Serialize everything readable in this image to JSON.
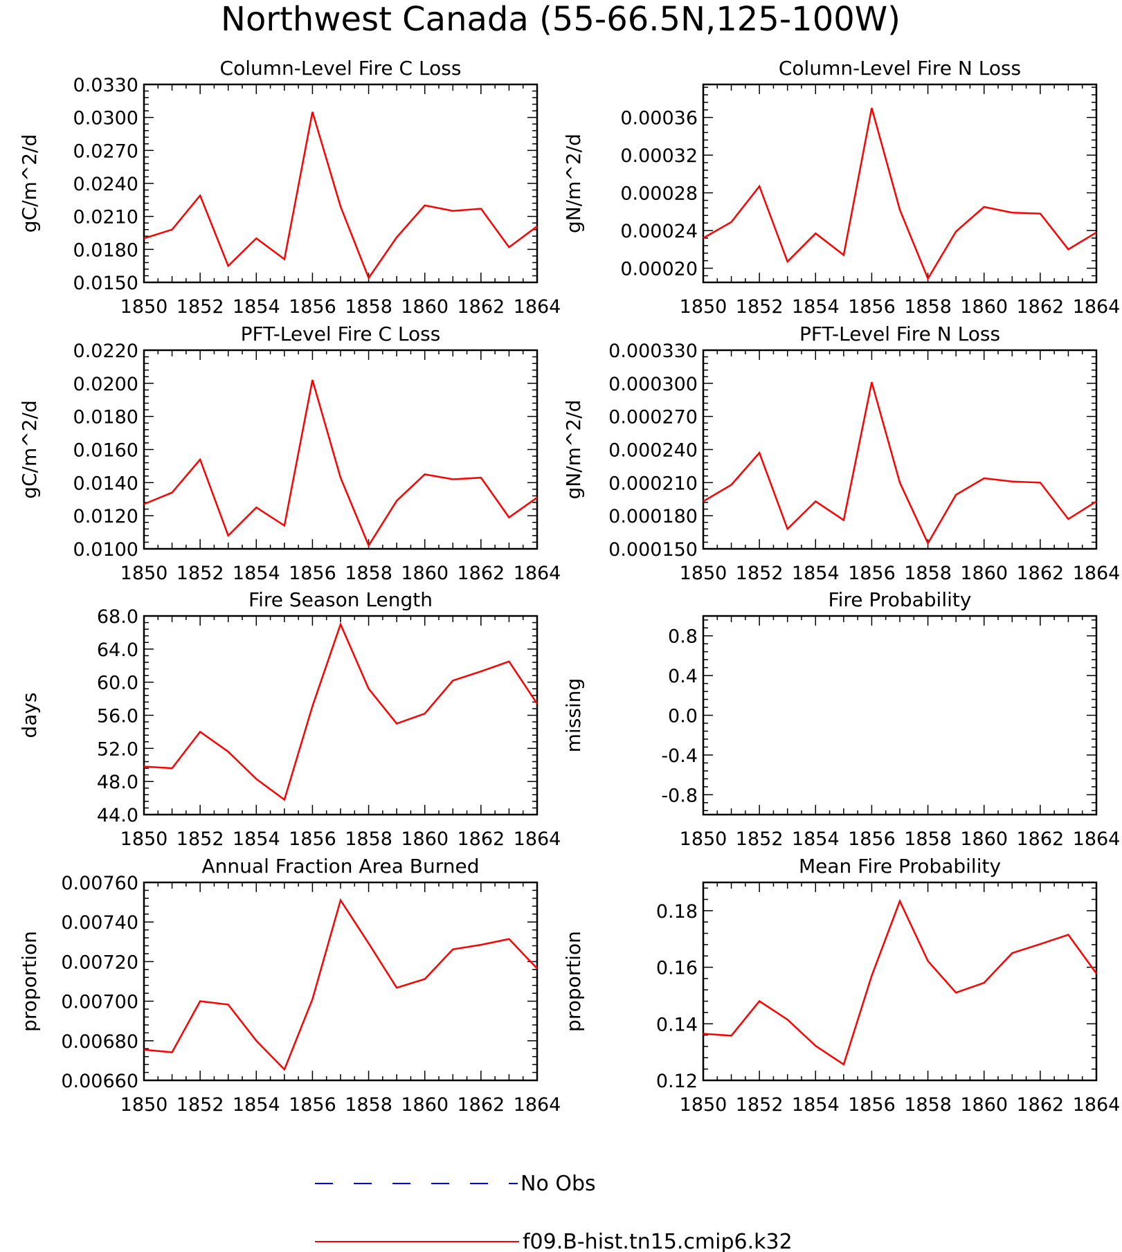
{
  "figure": {
    "title": "Northwest Canada (55-66.5N,125-100W)",
    "series_colors": {
      "model": "#ff0000",
      "obs": "#0000ff"
    }
  },
  "legend": {
    "items": [
      {
        "label": "No Obs",
        "style": "dashed",
        "color": "#0000ff"
      },
      {
        "label": "f09.B-hist.tn15.cmip6.k32",
        "style": "solid",
        "color": "#ff0000"
      }
    ]
  },
  "chart_data": [
    {
      "type": "line",
      "title": "Column-Level Fire C Loss",
      "ylabel": "gC/m^2/d",
      "xlim": [
        1850,
        1864
      ],
      "xticks": [
        "1850",
        "1852",
        "1854",
        "1856",
        "1858",
        "1860",
        "1862",
        "1864"
      ],
      "ylim": [
        0.015,
        0.033
      ],
      "yticks": [
        "0.0150",
        "0.0180",
        "0.0210",
        "0.0240",
        "0.0270",
        "0.0300",
        "0.0330"
      ],
      "x": [
        1850,
        1851,
        1852,
        1853,
        1854,
        1855,
        1856,
        1857,
        1858,
        1859,
        1860,
        1861,
        1862,
        1863,
        1864
      ],
      "series": [
        {
          "values": [
            0.019,
            0.0198,
            0.0229,
            0.0165,
            0.019,
            0.0171,
            0.0305,
            0.0219,
            0.0154,
            0.0191,
            0.022,
            0.0215,
            0.0217,
            0.0182,
            0.0201
          ]
        }
      ]
    },
    {
      "type": "line",
      "title": "Column-Level Fire N Loss",
      "ylabel": "gN/m^2/d",
      "xlim": [
        1850,
        1864
      ],
      "xticks": [
        "1850",
        "1852",
        "1854",
        "1856",
        "1858",
        "1860",
        "1862",
        "1864"
      ],
      "ylim": [
        0.000185,
        0.000395
      ],
      "yticks": [
        "0.00020",
        "0.00024",
        "0.00028",
        "0.00032",
        "0.00036"
      ],
      "x": [
        1850,
        1851,
        1852,
        1853,
        1854,
        1855,
        1856,
        1857,
        1858,
        1859,
        1860,
        1861,
        1862,
        1863,
        1864
      ],
      "series": [
        {
          "values": [
            0.000232,
            0.000249,
            0.000287,
            0.000207,
            0.000237,
            0.000214,
            0.00037,
            0.000262,
            0.000189,
            0.000239,
            0.000265,
            0.000259,
            0.000258,
            0.00022,
            0.000238
          ]
        }
      ]
    },
    {
      "type": "line",
      "title": "PFT-Level Fire C Loss",
      "ylabel": "gC/m^2/d",
      "xlim": [
        1850,
        1864
      ],
      "xticks": [
        "1850",
        "1852",
        "1854",
        "1856",
        "1858",
        "1860",
        "1862",
        "1864"
      ],
      "ylim": [
        0.01,
        0.022
      ],
      "yticks": [
        "0.0100",
        "0.0120",
        "0.0140",
        "0.0160",
        "0.0180",
        "0.0200",
        "0.0220"
      ],
      "x": [
        1850,
        1851,
        1852,
        1853,
        1854,
        1855,
        1856,
        1857,
        1858,
        1859,
        1860,
        1861,
        1862,
        1863,
        1864
      ],
      "series": [
        {
          "values": [
            0.0127,
            0.0134,
            0.0154,
            0.0108,
            0.0125,
            0.0114,
            0.0202,
            0.0143,
            0.0102,
            0.0129,
            0.0145,
            0.0142,
            0.0143,
            0.0119,
            0.0131
          ]
        }
      ]
    },
    {
      "type": "line",
      "title": "PFT-Level Fire N Loss",
      "ylabel": "gN/m^2/d",
      "xlim": [
        1850,
        1864
      ],
      "xticks": [
        "1850",
        "1852",
        "1854",
        "1856",
        "1858",
        "1860",
        "1862",
        "1864"
      ],
      "ylim": [
        0.00015,
        0.00033
      ],
      "yticks": [
        "0.000150",
        "0.000180",
        "0.000210",
        "0.000240",
        "0.000270",
        "0.000300",
        "0.000330"
      ],
      "x": [
        1850,
        1851,
        1852,
        1853,
        1854,
        1855,
        1856,
        1857,
        1858,
        1859,
        1860,
        1861,
        1862,
        1863,
        1864
      ],
      "series": [
        {
          "values": [
            0.000193,
            0.000208,
            0.000237,
            0.000168,
            0.000193,
            0.000176,
            0.000301,
            0.00021,
            0.000155,
            0.000199,
            0.000214,
            0.000211,
            0.00021,
            0.000177,
            0.000193
          ]
        }
      ]
    },
    {
      "type": "line",
      "title": "Fire Season Length",
      "ylabel": "days",
      "xlim": [
        1850,
        1864
      ],
      "xticks": [
        "1850",
        "1852",
        "1854",
        "1856",
        "1858",
        "1860",
        "1862",
        "1864"
      ],
      "ylim": [
        44,
        68
      ],
      "yticks": [
        "44.0",
        "48.0",
        "52.0",
        "56.0",
        "60.0",
        "64.0",
        "68.0"
      ],
      "x": [
        1850,
        1851,
        1852,
        1853,
        1854,
        1855,
        1856,
        1857,
        1858,
        1859,
        1860,
        1861,
        1862,
        1863,
        1864
      ],
      "series": [
        {
          "values": [
            49.8,
            49.6,
            54.0,
            51.6,
            48.3,
            45.8,
            57.1,
            67.0,
            59.2,
            55.0,
            56.2,
            60.2,
            61.3,
            62.5,
            57.4
          ]
        }
      ]
    },
    {
      "type": "line",
      "title": "Fire Probability",
      "ylabel": "missing",
      "xlim": [
        1850,
        1864
      ],
      "xticks": [
        "1850",
        "1852",
        "1854",
        "1856",
        "1858",
        "1860",
        "1862",
        "1864"
      ],
      "ylim": [
        -1.0,
        1.0
      ],
      "yticks": [
        "-0.8",
        "-0.4",
        "0.0",
        "0.4",
        "0.8"
      ],
      "x": [],
      "series": [
        {
          "values": []
        }
      ]
    },
    {
      "type": "line",
      "title": "Annual Fraction Area Burned",
      "ylabel": "proportion",
      "xlim": [
        1850,
        1864
      ],
      "xticks": [
        "1850",
        "1852",
        "1854",
        "1856",
        "1858",
        "1860",
        "1862",
        "1864"
      ],
      "ylim": [
        0.0066,
        0.0076
      ],
      "yticks": [
        "0.00660",
        "0.00680",
        "0.00700",
        "0.00720",
        "0.00740",
        "0.00760"
      ],
      "x": [
        1850,
        1851,
        1852,
        1853,
        1854,
        1855,
        1856,
        1857,
        1858,
        1859,
        1860,
        1861,
        1862,
        1863,
        1864
      ],
      "series": [
        {
          "values": [
            0.006755,
            0.006742,
            0.007,
            0.006983,
            0.0068,
            0.006655,
            0.00701,
            0.00751,
            0.007292,
            0.007068,
            0.007112,
            0.007262,
            0.007285,
            0.007314,
            0.007165
          ]
        }
      ]
    },
    {
      "type": "line",
      "title": "Mean Fire Probability",
      "ylabel": "proportion",
      "xlim": [
        1850,
        1864
      ],
      "xticks": [
        "1850",
        "1852",
        "1854",
        "1856",
        "1858",
        "1860",
        "1862",
        "1864"
      ],
      "ylim": [
        0.12,
        0.19
      ],
      "yticks": [
        "0.12",
        "0.14",
        "0.16",
        "0.18"
      ],
      "x": [
        1850,
        1851,
        1852,
        1853,
        1854,
        1855,
        1856,
        1857,
        1858,
        1859,
        1860,
        1861,
        1862,
        1863,
        1864
      ],
      "series": [
        {
          "values": [
            0.1365,
            0.1358,
            0.148,
            0.1415,
            0.1322,
            0.1256,
            0.157,
            0.1834,
            0.1622,
            0.151,
            0.1545,
            0.165,
            0.1682,
            0.1715,
            0.1578
          ]
        }
      ]
    }
  ]
}
